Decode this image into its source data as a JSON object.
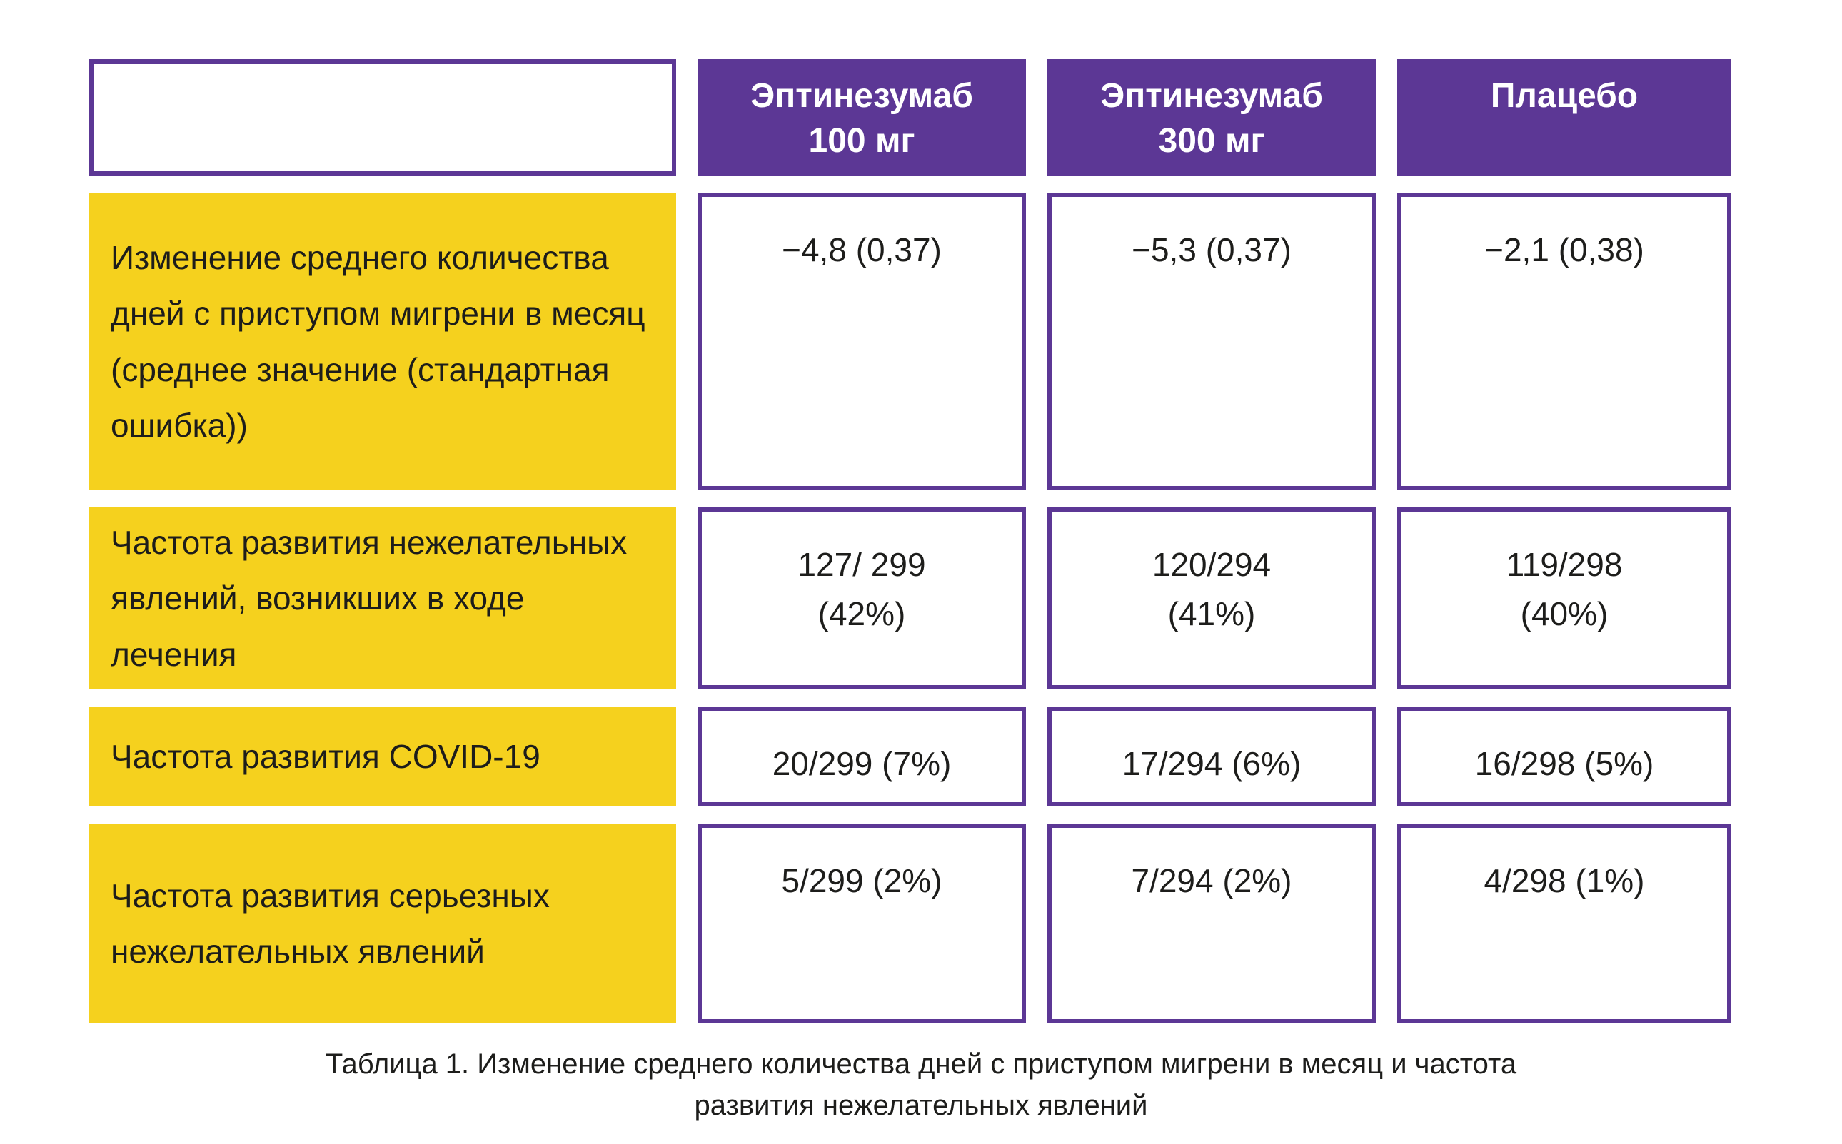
{
  "header": {
    "columns": [
      {
        "label": "Эптинезумаб\n100 мг"
      },
      {
        "label": "Эптинезумаб\n300 мг"
      },
      {
        "label": "Плацебо"
      }
    ]
  },
  "rows": [
    {
      "label": "Изменение среднего количества дней с приступом мигрени в месяц (среднее значение (стандартная ошибка))",
      "values": [
        "−4,8 (0,37)",
        "−5,3 (0,37)",
        "−2,1 (0,38)"
      ]
    },
    {
      "label": "Частота развития нежелательных явлений, возникших в ходе лечения",
      "values": [
        "127/ 299\n(42%)",
        "120/294\n(41%)",
        "119/298\n(40%)"
      ]
    },
    {
      "label": "Частота развития COVID-19",
      "values": [
        "20/299 (7%)",
        "17/294 (6%)",
        "16/298 (5%)"
      ]
    },
    {
      "label": "Частота развития серьезных нежелательных явлений",
      "values": [
        "5/299 (2%)",
        "7/294 (2%)",
        "4/298 (1%)"
      ]
    }
  ],
  "caption": "Таблица 1. Изменение среднего количества дней с приступом мигрени в месяц и частота\nразвития нежелательных явлений",
  "colors": {
    "purple": "#5c3795",
    "yellow": "#f5d11e",
    "text": "#1d1d1b"
  }
}
